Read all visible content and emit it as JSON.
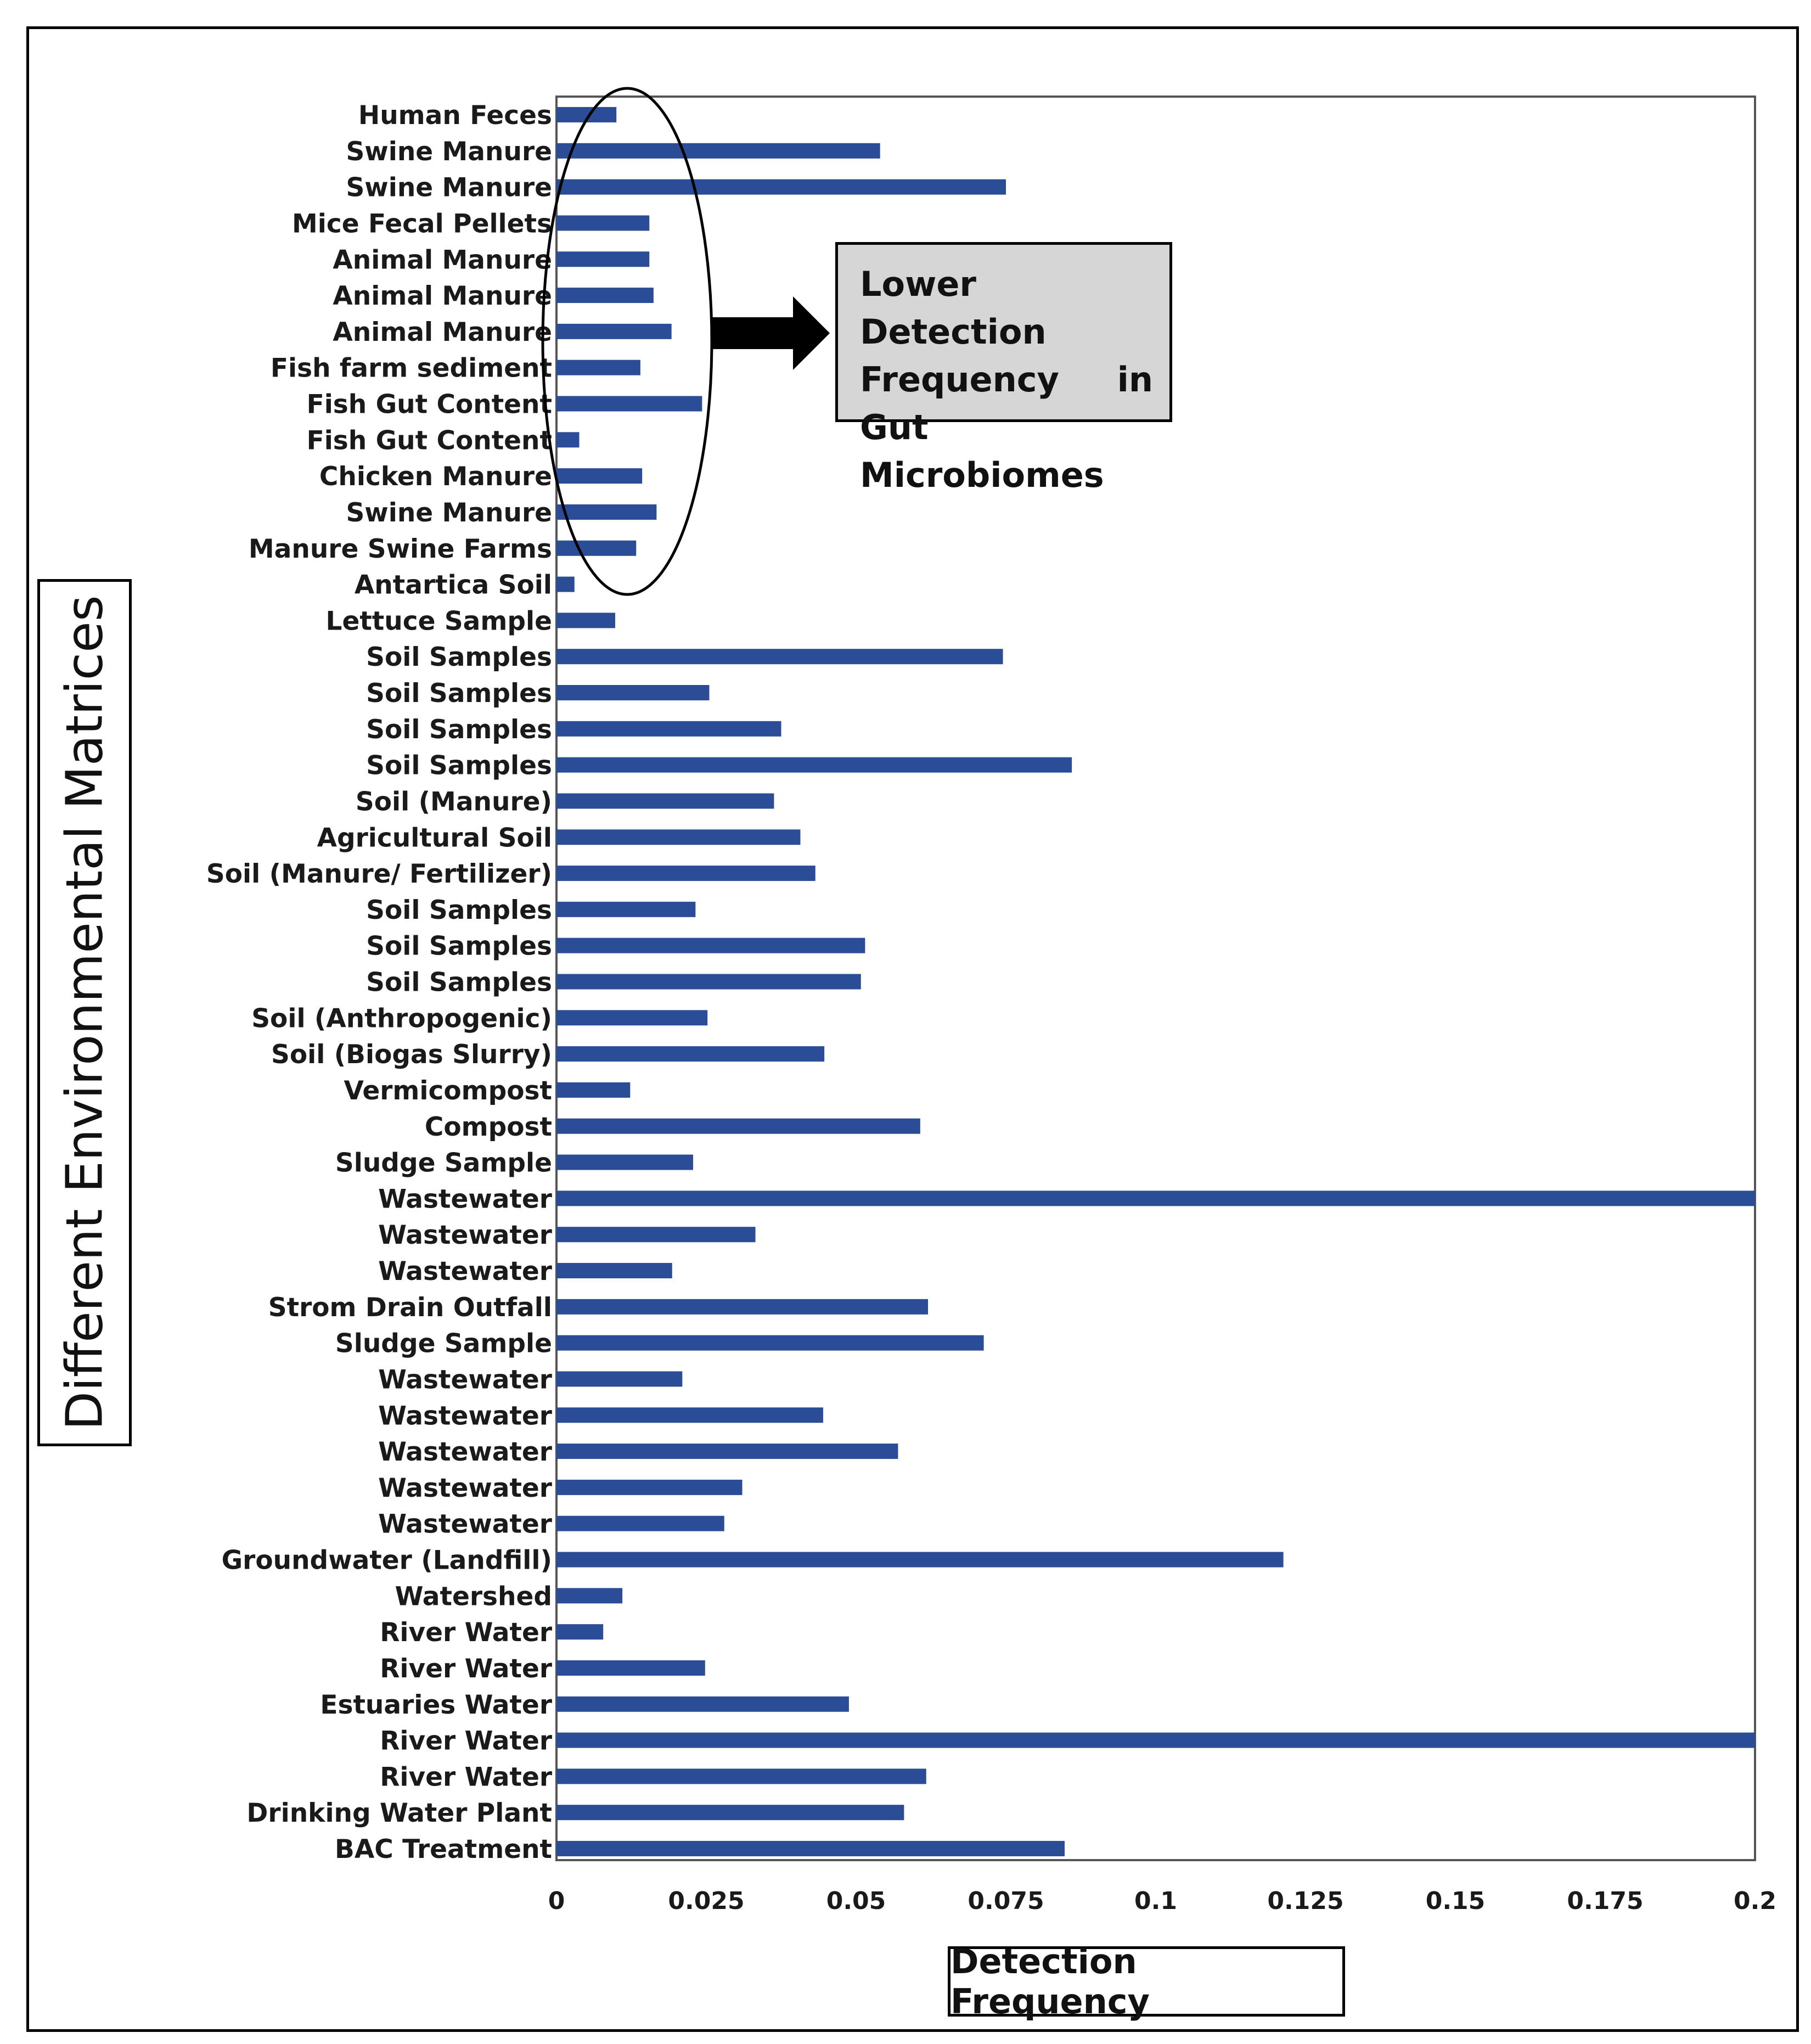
{
  "chart_data": {
    "type": "bar",
    "orientation": "horizontal",
    "categories": [
      "Human Feces",
      "Swine Manure",
      "Swine Manure",
      "Mice Fecal Pellets",
      "Animal Manure",
      "Animal Manure",
      "Animal Manure",
      "Fish farm sediment",
      "Fish Gut Content",
      "Fish Gut Content",
      "Chicken Manure",
      "Swine Manure",
      "Manure Swine Farms",
      "Antartica Soil",
      "Lettuce Sample",
      "Soil Samples",
      "Soil Samples",
      "Soil Samples",
      "Soil Samples",
      "Soil (Manure)",
      "Agricultural Soil",
      "Soil (Manure/ Fertilizer)",
      "Soil Samples",
      "Soil Samples",
      "Soil Samples",
      "Soil  (Anthropogenic)",
      "Soil (Biogas Slurry)",
      "Vermicompost",
      "Compost",
      "Sludge Sample",
      "Wastewater",
      "Wastewater",
      "Wastewater",
      "Strom Drain Outfall",
      "Sludge Sample",
      "Wastewater",
      "Wastewater",
      "Wastewater",
      "Wastewater",
      "Wastewater",
      "Groundwater (Landfill)",
      "Watershed",
      "River Water",
      "River Water",
      "Estuaries Water",
      "River Water",
      "River Water",
      "Drinking Water Plant",
      "BAC Treatment"
    ],
    "values": [
      0.01,
      0.054,
      0.075,
      0.0155,
      0.0155,
      0.0162,
      0.0192,
      0.014,
      0.0243,
      0.0038,
      0.0143,
      0.0167,
      0.0133,
      0.003,
      0.0098,
      0.0745,
      0.0255,
      0.0375,
      0.086,
      0.0363,
      0.0407,
      0.0432,
      0.0232,
      0.0515,
      0.0508,
      0.0252,
      0.0447,
      0.0123,
      0.0607,
      0.0228,
      0.2,
      0.0332,
      0.0193,
      0.062,
      0.0713,
      0.021,
      0.0445,
      0.057,
      0.031,
      0.028,
      0.1213,
      0.011,
      0.0078,
      0.0248,
      0.0488,
      0.2,
      0.0617,
      0.058,
      0.0848
    ],
    "xlim": [
      0,
      0.2
    ],
    "xticks": [
      "0",
      "0.025",
      "0.05",
      "0.075",
      "0.1",
      "0.125",
      "0.15",
      "0.175",
      "0.2"
    ],
    "xticks_values": [
      0,
      0.025,
      0.05,
      0.075,
      0.1,
      0.125,
      0.15,
      0.175,
      0.2
    ],
    "xlabel": "Detection Frequency",
    "ylabel": "Different Environmental Matrices",
    "bar_color": "#2b4c96",
    "grid": false,
    "annotation": {
      "text": "Lower Detection Frequency in Gut Microbiomes",
      "box_color": "#d6d6d6",
      "encircled_categories": "Human Feces to Manure Swine Farms"
    }
  }
}
